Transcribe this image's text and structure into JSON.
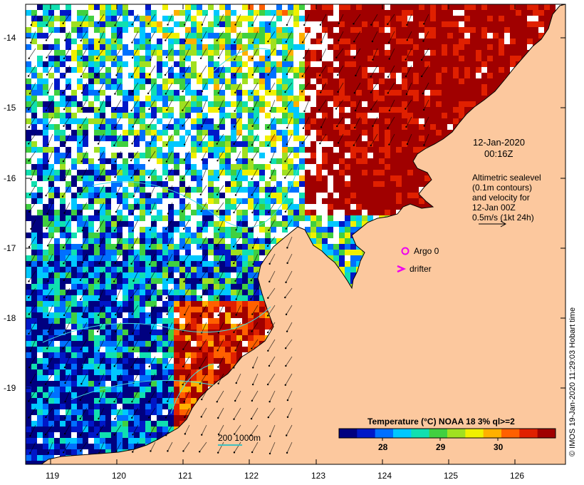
{
  "map": {
    "lon_range": [
      118.6,
      126.7
    ],
    "lat_range": [
      -20.05,
      -13.6
    ],
    "lon_ticks": [
      "119",
      "120",
      "121",
      "122",
      "123",
      "124",
      "125",
      "126"
    ],
    "lat_ticks": [
      "-14",
      "-15",
      "-16",
      "-17",
      "-18",
      "-19"
    ],
    "land_color": "#fcc89e",
    "no_data_color": "#ffffff"
  },
  "annotations": {
    "date": "12-Jan-2020",
    "time": "00:16Z",
    "alt_line1": "Altimetric sealevel",
    "alt_line2": "(0.1m contours)",
    "alt_line3": "and velocity for",
    "alt_line4": "12-Jan 00Z",
    "alt_line5": "0.5m/s (1kt 24h)"
  },
  "legend": {
    "argo_label": "Argo 0",
    "drifter_label": "drifter",
    "argo_color": "#ee00ee",
    "drifter_color": "#ee00ee",
    "scale_label": "200  1000m",
    "scale_color": "#40c0c0"
  },
  "colorbar": {
    "title": "Temperature (°C) NOAA 18 3% ql>=2",
    "tick_labels": [
      "28",
      "29",
      "30"
    ],
    "colors": [
      "#000080",
      "#0018c8",
      "#0070ff",
      "#00c8ff",
      "#10e0b0",
      "#40d040",
      "#a0e020",
      "#f0f000",
      "#ffb000",
      "#ff6000",
      "#e02000",
      "#a00000"
    ]
  },
  "credit": "© IMOS 19-Jan-2020 11:29:03 Hobart time"
}
